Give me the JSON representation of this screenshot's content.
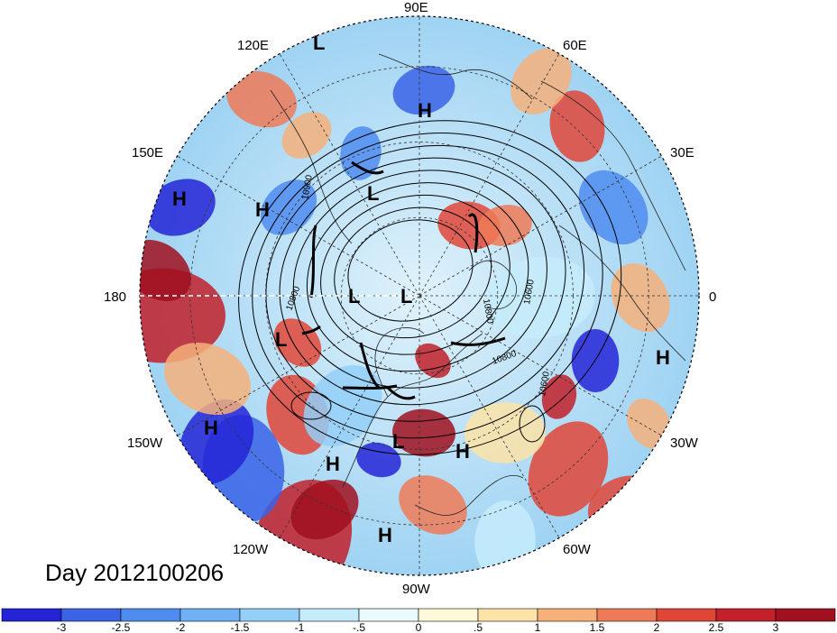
{
  "title": "Day 2012100206",
  "map": {
    "projection": "north-polar-stereographic",
    "longitude_labels": [
      "90E",
      "60E",
      "30E",
      "0",
      "30W",
      "60W",
      "90W",
      "120W",
      "150W",
      "180",
      "150E",
      "120E"
    ],
    "pressure_centers": [
      {
        "type": "L"
      },
      {
        "type": "H"
      },
      {
        "type": "L"
      },
      {
        "type": "H"
      },
      {
        "type": "H"
      },
      {
        "type": "L"
      },
      {
        "type": "L"
      },
      {
        "type": "L"
      },
      {
        "type": "H"
      },
      {
        "type": "H"
      },
      {
        "type": "L"
      },
      {
        "type": "H"
      },
      {
        "type": "H"
      },
      {
        "type": "H"
      }
    ],
    "contour_labels": [
      "10900",
      "10800",
      "10800",
      "10600",
      "10800",
      "10600"
    ]
  },
  "colorbar": {
    "ticks": [
      "-3",
      "-2.5",
      "-2",
      "-1.5",
      "-1",
      "-.5",
      "0",
      ".5",
      "1",
      "1.5",
      "2",
      "2.5",
      "3"
    ],
    "colors": [
      "#2424d6",
      "#3a63e6",
      "#4f8cf0",
      "#6fb0f6",
      "#94cff8",
      "#c5ecfb",
      "#eafaff",
      "#fff9d8",
      "#fde3a7",
      "#f6b07a",
      "#ef7a57",
      "#e04638",
      "#c2202a",
      "#a0101e"
    ]
  }
}
